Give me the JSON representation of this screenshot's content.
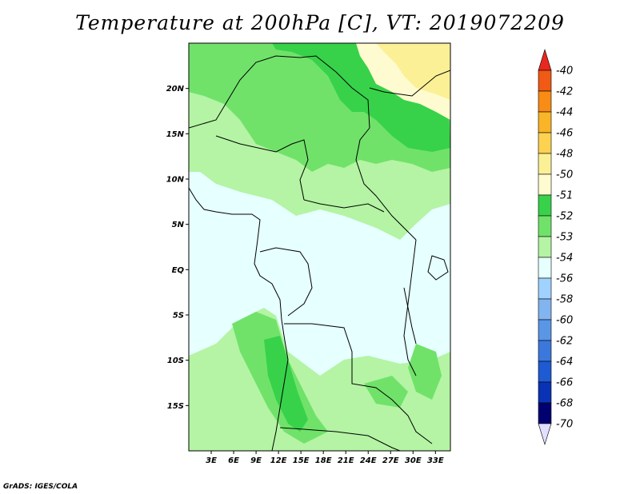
{
  "title": "Temperature at 200hPa [C], VT: 2019072209",
  "footer": "GrADS: IGES/COLA",
  "map": {
    "lon_range": [
      0,
      35
    ],
    "lat_range": [
      -20,
      25
    ],
    "lat_labels": [
      {
        "text": "20N",
        "lat": 20
      },
      {
        "text": "15N",
        "lat": 15
      },
      {
        "text": "10N",
        "lat": 10
      },
      {
        "text": "5N",
        "lat": 5
      },
      {
        "text": "EQ",
        "lat": 0
      },
      {
        "text": "5S",
        "lat": -5
      },
      {
        "text": "10S",
        "lat": -10
      },
      {
        "text": "15S",
        "lat": -15
      }
    ],
    "lon_labels": [
      {
        "text": "3E",
        "lon": 3
      },
      {
        "text": "6E",
        "lon": 6
      },
      {
        "text": "9E",
        "lon": 9
      },
      {
        "text": "12E",
        "lon": 12
      },
      {
        "text": "15E",
        "lon": 15
      },
      {
        "text": "18E",
        "lon": 18
      },
      {
        "text": "21E",
        "lon": 21
      },
      {
        "text": "24E",
        "lon": 24
      },
      {
        "text": "27E",
        "lon": 27
      },
      {
        "text": "30E",
        "lon": 30
      },
      {
        "text": "33E",
        "lon": 33
      }
    ]
  },
  "colorbar": {
    "labels": [
      "-40",
      "-42",
      "-44",
      "-46",
      "-48",
      "-50",
      "-51",
      "-52",
      "-53",
      "-54",
      "-56",
      "-58",
      "-60",
      "-62",
      "-64",
      "-66",
      "-68",
      "-70"
    ],
    "colors": [
      "#e8281e",
      "#f05a14",
      "#f88c14",
      "#fab428",
      "#fcd250",
      "#fcf096",
      "#fffbd0",
      "#37d24a",
      "#70e26a",
      "#b4f4a4",
      "#e6ffff",
      "#a0d2ff",
      "#82b4f0",
      "#5a96e6",
      "#3c78dc",
      "#1e5ad2",
      "#0a32b4",
      "#000070",
      "#e0e0ff"
    ]
  },
  "colors": {
    "c51": "#fffbd0",
    "c50": "#fcf096",
    "c52": "#37d24a",
    "c53": "#70e26a",
    "c54": "#b4f4a4",
    "c56": "#e6ffff"
  }
}
